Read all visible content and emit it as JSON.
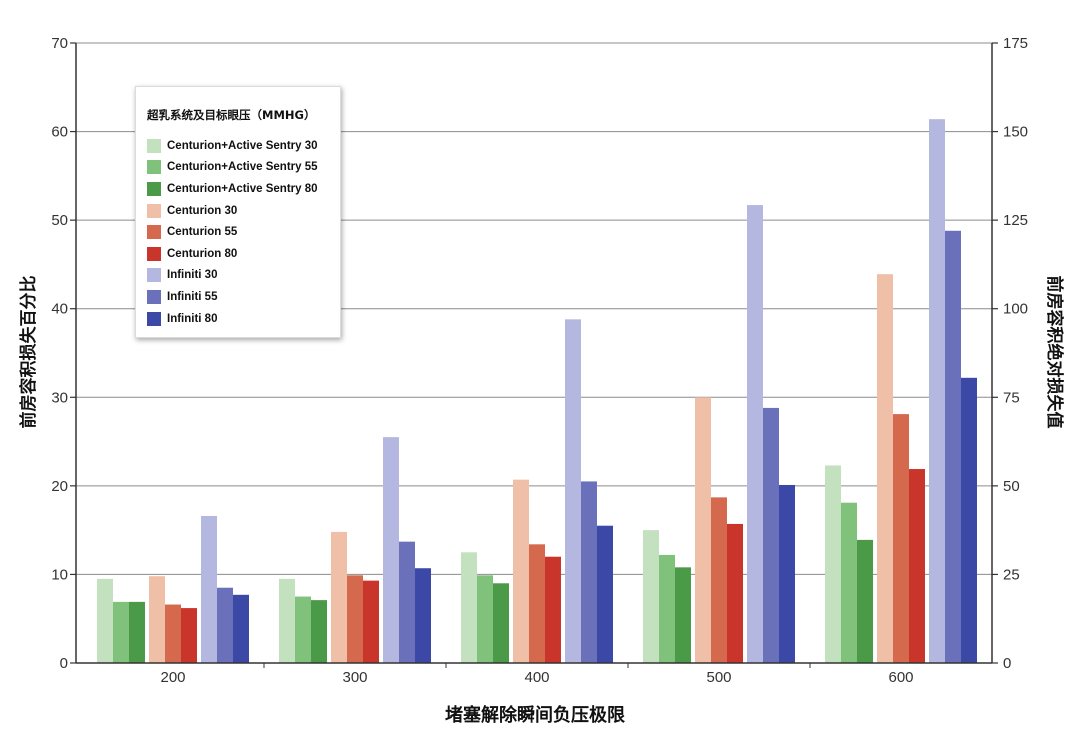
{
  "chart_data": {
    "type": "bar",
    "xlabel": "堵塞解除瞬间负压极限",
    "ylabel": "前房容积损失百分比",
    "y2label": "前房容积绝对损失值",
    "categories": [
      "200",
      "300",
      "400",
      "500",
      "600"
    ],
    "ylim": [
      0,
      70
    ],
    "y2lim": [
      0,
      175
    ],
    "yticks": [
      0,
      10,
      20,
      30,
      40,
      50,
      60,
      70
    ],
    "y2ticks": [
      0,
      25,
      50,
      75,
      100,
      125,
      150,
      175
    ],
    "grid": true,
    "legend": {
      "title": "超乳系统及目标眼压（MMHG）",
      "position": "top-left"
    },
    "series": [
      {
        "name": "Centurion+Active Sentry 30",
        "color": "#c3e1bf",
        "values": [
          9.5,
          9.5,
          12.5,
          15.0,
          22.3
        ]
      },
      {
        "name": "Centurion+Active Sentry 55",
        "color": "#80c27b",
        "values": [
          6.9,
          7.5,
          9.9,
          12.2,
          18.1
        ]
      },
      {
        "name": "Centurion+Active Sentry 80",
        "color": "#4b9a47",
        "values": [
          6.9,
          7.1,
          9.0,
          10.8,
          13.9
        ]
      },
      {
        "name": "Centurion 30",
        "color": "#efc0a7",
        "values": [
          9.8,
          14.8,
          20.7,
          30.0,
          43.9
        ]
      },
      {
        "name": "Centurion 55",
        "color": "#d4694d",
        "values": [
          6.6,
          9.9,
          13.4,
          18.7,
          28.1
        ]
      },
      {
        "name": "Centurion 80",
        "color": "#c9342b",
        "values": [
          6.2,
          9.3,
          12.0,
          15.7,
          21.9
        ]
      },
      {
        "name": "Infiniti 30",
        "color": "#b4b7e0",
        "values": [
          16.6,
          25.5,
          38.8,
          51.7,
          61.4
        ]
      },
      {
        "name": "Infiniti 55",
        "color": "#6b70bb",
        "values": [
          8.5,
          13.7,
          20.5,
          28.8,
          48.8
        ]
      },
      {
        "name": "Infiniti 80",
        "color": "#3c48a6",
        "values": [
          7.7,
          10.7,
          15.5,
          20.1,
          32.2
        ]
      }
    ]
  }
}
